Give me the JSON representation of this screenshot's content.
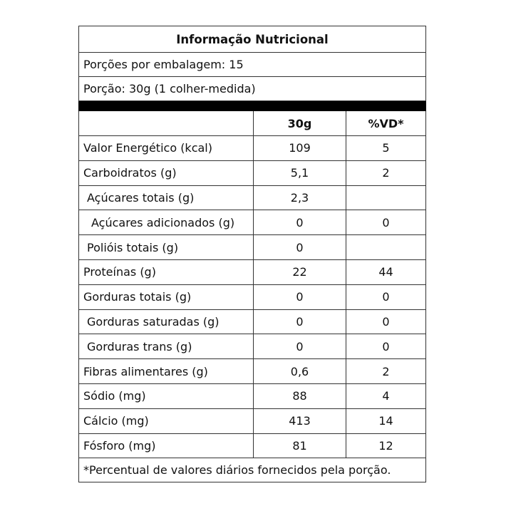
{
  "title": "Informação Nutricional",
  "servings_per_package": "Porções por embalagem: 15",
  "serving_size": "Porção: 30g (1 colher-medida)",
  "columns": {
    "amount": "30g",
    "dv": "%VD*"
  },
  "rows": [
    {
      "label": "Valor Energético (kcal)",
      "amount": "109",
      "dv": "5",
      "indent": 0
    },
    {
      "label": "Carboidratos (g)",
      "amount": "5,1",
      "dv": "2",
      "indent": 0
    },
    {
      "label": "Açúcares totais (g)",
      "amount": "2,3",
      "dv": "",
      "indent": 1
    },
    {
      "label": "Açúcares adicionados (g)",
      "amount": "0",
      "dv": "0",
      "indent": 2
    },
    {
      "label": "Polióis totais (g)",
      "amount": "0",
      "dv": "",
      "indent": 1
    },
    {
      "label": "Proteínas (g)",
      "amount": "22",
      "dv": "44",
      "indent": 0
    },
    {
      "label": "Gorduras totais (g)",
      "amount": "0",
      "dv": "0",
      "indent": 0
    },
    {
      "label": "Gorduras saturadas (g)",
      "amount": "0",
      "dv": "0",
      "indent": 1
    },
    {
      "label": "Gorduras trans (g)",
      "amount": "0",
      "dv": "0",
      "indent": 1
    },
    {
      "label": "Fibras alimentares (g)",
      "amount": "0,6",
      "dv": "2",
      "indent": 0
    },
    {
      "label": "Sódio (mg)",
      "amount": "88",
      "dv": "4",
      "indent": 0
    },
    {
      "label": "Cálcio (mg)",
      "amount": "413",
      "dv": "14",
      "indent": 0
    },
    {
      "label": "Fósforo (mg)",
      "amount": "81",
      "dv": "12",
      "indent": 0
    }
  ],
  "footnote": "*Percentual de valores diários fornecidos pela porção."
}
